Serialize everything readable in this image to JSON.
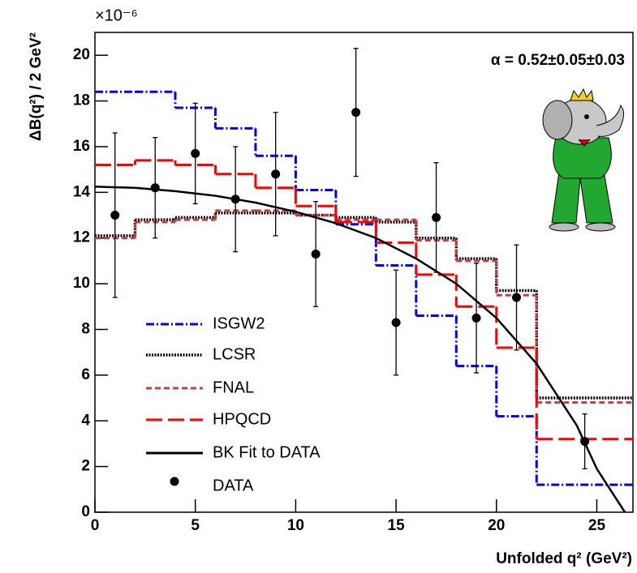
{
  "chart_data": {
    "type": "histogram",
    "multiplier": "×10⁻⁶",
    "ylabel": "ΔB(q²) / 2 GeV²",
    "xlabel": "Unfolded q² (GeV²)",
    "annotation": "α = 0.52±0.05±0.03",
    "xlim": [
      0,
      26.8
    ],
    "ylim": [
      0,
      21
    ],
    "xticks": [
      0,
      5,
      10,
      15,
      20,
      25
    ],
    "yticks": [
      0,
      2,
      4,
      6,
      8,
      10,
      12,
      14,
      16,
      18,
      20
    ],
    "bins": [
      0,
      2,
      4,
      6,
      8,
      10,
      12,
      14,
      16,
      18,
      20,
      22,
      26.8
    ],
    "series": [
      {
        "name": "ISGW2",
        "color": "#0000ee",
        "linestyle": "dashdot",
        "values": [
          18.4,
          18.4,
          17.7,
          16.8,
          15.6,
          14.1,
          12.6,
          10.8,
          8.6,
          6.4,
          4.2,
          1.2
        ]
      },
      {
        "name": "LCSR",
        "color": "#000000",
        "linestyle": "dotted",
        "values": [
          12.1,
          12.8,
          12.9,
          13.1,
          13.1,
          13.0,
          12.9,
          12.7,
          12.0,
          11.1,
          9.7,
          5.0
        ]
      },
      {
        "name": "FNAL",
        "color": "#c04040",
        "linestyle": "dashed",
        "values": [
          12.0,
          12.7,
          12.8,
          13.2,
          13.2,
          13.0,
          12.8,
          12.8,
          11.9,
          11.0,
          9.5,
          4.8
        ]
      },
      {
        "name": "HPQCD",
        "color": "#ff0000",
        "linestyle": "longdash",
        "values": [
          15.2,
          15.4,
          15.2,
          14.8,
          14.2,
          13.4,
          12.7,
          11.8,
          10.4,
          9.0,
          7.2,
          3.2
        ]
      }
    ],
    "fit": {
      "name": "BK Fit to DATA",
      "color": "#000000",
      "x": [
        0,
        2,
        4,
        6,
        8,
        10,
        12,
        14,
        16,
        18,
        20,
        22,
        24,
        25,
        26.4
      ],
      "values": [
        14.25,
        14.2,
        14.05,
        13.85,
        13.55,
        13.15,
        12.65,
        12.0,
        11.1,
        10.0,
        8.5,
        6.5,
        3.8,
        1.9,
        0
      ]
    },
    "points": {
      "name": "DATA",
      "color": "#000000",
      "x": [
        1,
        3,
        5,
        7,
        9,
        11,
        13,
        15,
        17,
        19,
        21,
        24.4
      ],
      "values": [
        13.0,
        14.2,
        15.7,
        13.7,
        14.8,
        11.3,
        17.5,
        8.3,
        12.9,
        8.5,
        9.4,
        3.1
      ],
      "errors": [
        3.6,
        2.2,
        2.2,
        2.3,
        2.7,
        2.3,
        2.8,
        2.3,
        2.4,
        2.4,
        2.3,
        1.2
      ]
    }
  }
}
